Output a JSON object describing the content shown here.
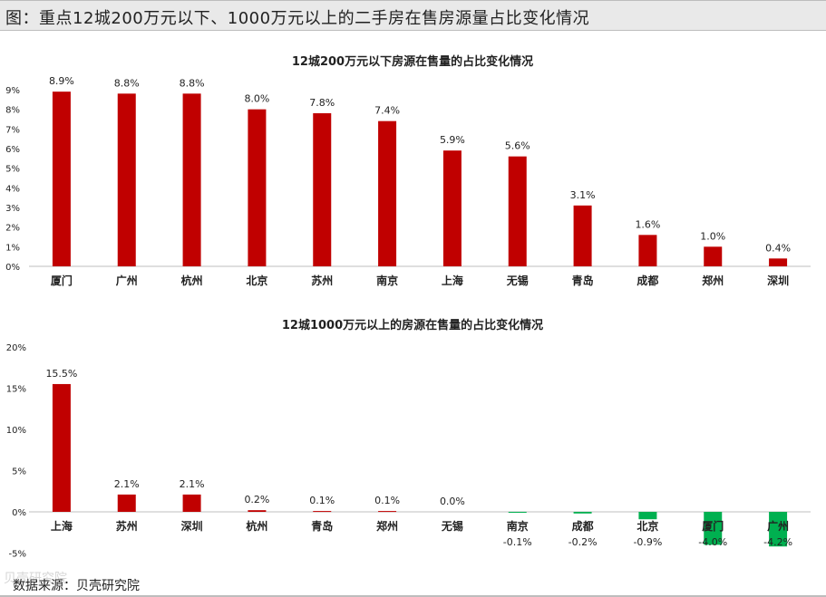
{
  "figure": {
    "title": "图：重点12城200万元以下、1000万元以上的二手房在售房源量占比变化情况",
    "source": "数据来源：贝壳研究院",
    "watermark": "贝壳研究院"
  },
  "chart_data": [
    {
      "type": "bar",
      "title": "12城200万元以下房源在售量的占比变化情况",
      "categories": [
        "厦门",
        "广州",
        "杭州",
        "北京",
        "苏州",
        "南京",
        "上海",
        "无锡",
        "青岛",
        "成都",
        "郑州",
        "深圳"
      ],
      "values": [
        8.9,
        8.8,
        8.8,
        8.0,
        7.8,
        7.4,
        5.9,
        5.6,
        3.1,
        1.6,
        1.0,
        0.4
      ],
      "data_labels": [
        "8.9%",
        "8.8%",
        "8.8%",
        "8.0%",
        "7.8%",
        "7.4%",
        "5.9%",
        "5.6%",
        "3.1%",
        "1.6%",
        "1.0%",
        "0.4%"
      ],
      "ylim": [
        0,
        9
      ],
      "y_ticks": [
        0,
        1,
        2,
        3,
        4,
        5,
        6,
        7,
        8,
        9
      ],
      "y_tick_labels": [
        "0%",
        "1%",
        "2%",
        "3%",
        "4%",
        "5%",
        "6%",
        "7%",
        "8%",
        "9%"
      ],
      "grid": false,
      "colors": {
        "positive": "#c00000",
        "negative": "#00b050"
      }
    },
    {
      "type": "bar",
      "title": "12城1000万元以上的房源在售量的占比变化情况",
      "categories": [
        "上海",
        "苏州",
        "深圳",
        "杭州",
        "青岛",
        "郑州",
        "无锡",
        "南京",
        "成都",
        "北京",
        "厦门",
        "广州"
      ],
      "values": [
        15.5,
        2.1,
        2.1,
        0.2,
        0.1,
        0.1,
        0.0,
        -0.1,
        -0.2,
        -0.9,
        -4.0,
        -4.2
      ],
      "data_labels": [
        "15.5%",
        "2.1%",
        "2.1%",
        "0.2%",
        "0.1%",
        "0.1%",
        "0.0%",
        "-0.1%",
        "-0.2%",
        "-0.9%",
        "-4.0%",
        "-4.2%"
      ],
      "ylim": [
        -5,
        20
      ],
      "y_ticks": [
        -5,
        0,
        5,
        10,
        15,
        20
      ],
      "y_tick_labels": [
        "-5%",
        "0%",
        "5%",
        "10%",
        "15%",
        "20%"
      ],
      "grid": false,
      "colors": {
        "positive": "#c00000",
        "negative": "#00b050"
      }
    }
  ]
}
